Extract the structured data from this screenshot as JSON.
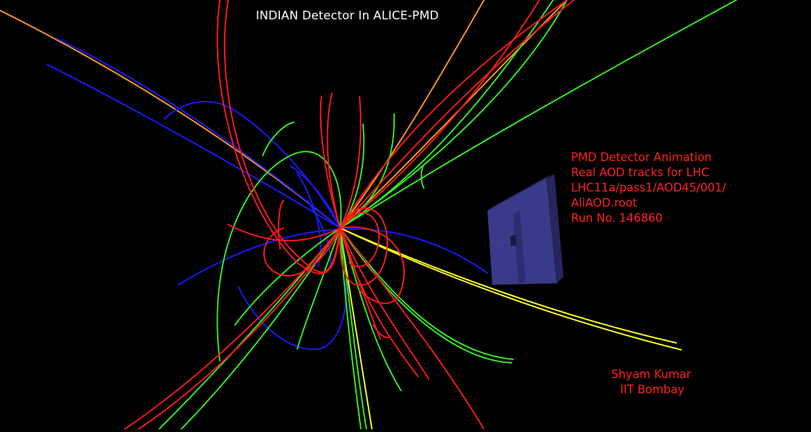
{
  "title": "INDIAN Detector In ALICE-PMD",
  "info": {
    "lines": [
      "PMD Detector Animation",
      "Real AOD tracks for LHC",
      "LHC11a/pass1/AOD45/001/",
      "AliAOD.root",
      "Run No. 146860"
    ]
  },
  "credits": {
    "author": "Shyam Kumar",
    "institute": "IIT Bombay"
  },
  "colors": {
    "background": "#000000",
    "title_text": "#ffffff",
    "info_text": "#ff2020",
    "track_red": "#ff1a1a",
    "track_green": "#33ee22",
    "track_blue": "#1a1aff",
    "track_yellow": "#ffff22",
    "track_orange": "#ff9922",
    "detector": "#3a3a8a"
  },
  "scene": {
    "object": "pmd-detector",
    "track_colors": [
      "red",
      "green",
      "blue",
      "yellow",
      "orange"
    ]
  }
}
